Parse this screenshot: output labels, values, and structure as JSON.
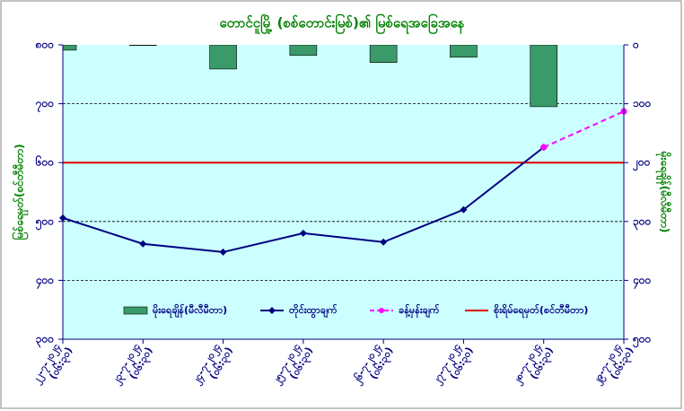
{
  "chart_data": {
    "type": "bar_line",
    "title": "တောင်ငူမြို့ (စစ်တောင်းမြစ်)၏ မြစ်ရေအခြေအနေ",
    "ylabel": "မြစ်ရေမှတ်(စင်တီမီတာ)",
    "y2label": "မိုးရေချိန်(မီလီမီတာ)",
    "categories": [
      [
        "၂၂-၇-၂၀၂၄",
        "(၀၆:၃၀)"
      ],
      [
        "၂၃-၇-၂၀၂၄",
        "(၀၆:၃၀)"
      ],
      [
        "၂၄-၇-၂၀၂၄",
        "(၀၆:၃၀)"
      ],
      [
        "၂၅-၇-၂၀၂၄",
        "(၀၆:၃၀)"
      ],
      [
        "၂၆-၇-၂၀၂၄",
        "(၀၆:၃၀)"
      ],
      [
        "၂၇-၇-၂၀၂၄",
        "(၀၆:၃၀)"
      ],
      [
        "၂၈-၇-၂၀၂၄",
        "(၀၆:၃၀)"
      ],
      [
        "၂၉-၇-၂၀၂၄",
        "(၀၆:၃၀)"
      ]
    ],
    "ylim": [
      300,
      800
    ],
    "yticks": [
      {
        "value": 300,
        "label": "၃၀၀"
      },
      {
        "value": 400,
        "label": "၄၀၀"
      },
      {
        "value": 500,
        "label": "၅၀၀"
      },
      {
        "value": 600,
        "label": "၆၀၀"
      },
      {
        "value": 700,
        "label": "၇၀၀"
      },
      {
        "value": 800,
        "label": "၈၀၀"
      }
    ],
    "y2lim": [
      0,
      500
    ],
    "y2_inverted": true,
    "y2ticks": [
      {
        "value": 0,
        "label": "၀"
      },
      {
        "value": 100,
        "label": "၁၀၀"
      },
      {
        "value": 200,
        "label": "၂၀၀"
      },
      {
        "value": 300,
        "label": "၃၀၀"
      },
      {
        "value": 400,
        "label": "၄၀၀"
      },
      {
        "value": 500,
        "label": "၅၀၀"
      }
    ],
    "grid": true,
    "series": [
      {
        "name": "မိုးရေချိန်(မီလီမီတာ)",
        "kind": "bar",
        "axis": "y2",
        "color": "#3a9a6a",
        "values": [
          9,
          1,
          41,
          18,
          30,
          21,
          105,
          null
        ]
      },
      {
        "name": "တိုင်းထွာချက်",
        "kind": "line",
        "color": "#000080",
        "marker": "diamond",
        "values": [
          506,
          462,
          448,
          480,
          465,
          520,
          626,
          null
        ]
      },
      {
        "name": "ခန့်မှန်းချက်",
        "kind": "line",
        "color": "#ff00ff",
        "dashed": true,
        "marker": "circle",
        "values": [
          null,
          null,
          null,
          null,
          null,
          null,
          626,
          687
        ]
      }
    ],
    "reference_line": {
      "name": "စိုးရိမ်ရေမှတ်(စင်တီမီတာ)",
      "value": 600,
      "color": "#e00000"
    }
  }
}
